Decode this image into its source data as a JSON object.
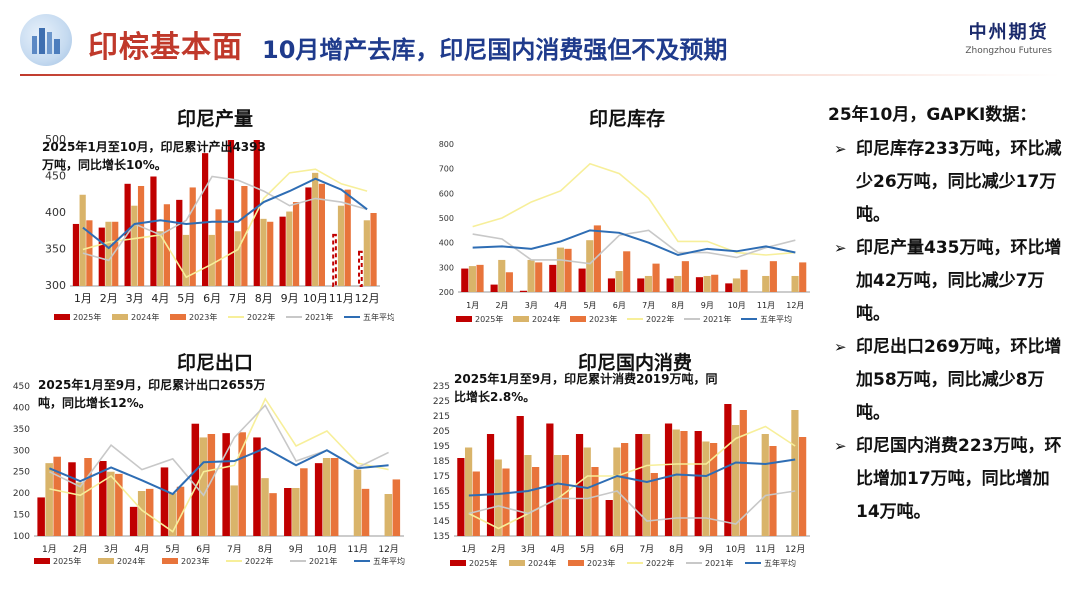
{
  "header": {
    "title_main": "印棕基本面",
    "title_sub": "10月增产去库，印尼国内消费强但不及预期",
    "brand_cn": "中州期货",
    "brand_en": "Zhongzhou Futures"
  },
  "legend_labels": [
    "2025年",
    "2024年",
    "2023年",
    "2022年",
    "2021年",
    "五年平均"
  ],
  "colors": {
    "y2025": "#c00000",
    "y2024": "#d9b46a",
    "y2023": "#e8743b",
    "y2022": "#f7ef9a",
    "y2021": "#c8c8c8",
    "avg": "#2e6db4"
  },
  "right_panel": {
    "heading": "25年10月，GAPKI数据：",
    "items": [
      "印尼库存233万吨，环比减少26万吨，同比减少17万吨。",
      "印尼产量435万吨，环比增加42万吨，同比减少7万吨。",
      "印尼出口269万吨，环比增加58万吨，同比减少8万吨。",
      "印尼国内消费223万吨，环比增加17万吨，同比增加14万吨。"
    ]
  },
  "chart_data": [
    {
      "id": "production",
      "type": "bar",
      "title": "印尼产量",
      "annotation": "2025年1月至10月，印尼累计产出4393万吨，同比增长10%。",
      "categories": [
        "1月",
        "2月",
        "3月",
        "4月",
        "5月",
        "6月",
        "7月",
        "8月",
        "9月",
        "10月",
        "11月",
        "12月"
      ],
      "ylim": [
        300,
        500
      ],
      "yticks": [
        300,
        350,
        400,
        450,
        500
      ],
      "bars": [
        {
          "name": "2025年",
          "values": [
            385,
            380,
            440,
            450,
            418,
            482,
            505,
            502,
            395,
            435,
            370,
            347
          ],
          "dashed_from": 10
        },
        {
          "name": "2024年",
          "values": [
            425,
            388,
            410,
            375,
            370,
            370,
            375,
            392,
            402,
            455,
            410,
            390
          ]
        },
        {
          "name": "2023年",
          "values": [
            390,
            388,
            437,
            412,
            435,
            405,
            437,
            388,
            415,
            440,
            432,
            400
          ]
        }
      ],
      "lines": [
        {
          "name": "2022年",
          "values": [
            350,
            360,
            365,
            370,
            312,
            330,
            350,
            420,
            455,
            460,
            440,
            430
          ]
        },
        {
          "name": "2021年",
          "values": [
            345,
            335,
            385,
            370,
            390,
            450,
            445,
            430,
            410,
            420,
            415,
            405
          ]
        },
        {
          "name": "五年平均",
          "values": [
            380,
            352,
            385,
            390,
            385,
            388,
            388,
            415,
            430,
            447,
            432,
            405
          ]
        }
      ]
    },
    {
      "id": "stocks",
      "type": "bar",
      "title": "印尼库存",
      "annotation": "",
      "categories": [
        "1月",
        "2月",
        "3月",
        "4月",
        "5月",
        "6月",
        "7月",
        "8月",
        "9月",
        "10月",
        "11月",
        "12月"
      ],
      "ylim": [
        200,
        800
      ],
      "yticks": [
        200,
        300,
        400,
        500,
        600,
        700,
        800
      ],
      "bars": [
        {
          "name": "2025年",
          "values": [
            295,
            230,
            205,
            310,
            295,
            255,
            255,
            255,
            260,
            235,
            null,
            null
          ]
        },
        {
          "name": "2024年",
          "values": [
            305,
            330,
            330,
            380,
            410,
            285,
            265,
            265,
            265,
            255,
            265,
            265
          ]
        },
        {
          "name": "2023年",
          "values": [
            310,
            280,
            320,
            375,
            470,
            365,
            315,
            325,
            270,
            290,
            325,
            320
          ]
        }
      ],
      "lines": [
        {
          "name": "2022年",
          "values": [
            465,
            500,
            565,
            610,
            720,
            680,
            580,
            405,
            405,
            360,
            350,
            360
          ]
        },
        {
          "name": "2021年",
          "values": [
            435,
            415,
            330,
            330,
            315,
            430,
            450,
            360,
            360,
            340,
            380,
            410
          ]
        },
        {
          "name": "五年平均",
          "values": [
            380,
            385,
            375,
            405,
            450,
            440,
            400,
            350,
            375,
            365,
            385,
            360
          ]
        }
      ]
    },
    {
      "id": "exports",
      "type": "bar",
      "title": "印尼出口",
      "annotation": "2025年1月至9月，印尼累计出口2655万吨，同比增长12%。",
      "categories": [
        "1月",
        "2月",
        "3月",
        "4月",
        "5月",
        "6月",
        "7月",
        "8月",
        "9月",
        "10月",
        "11月",
        "12月"
      ],
      "ylim": [
        100,
        450
      ],
      "yticks": [
        100,
        150,
        200,
        250,
        300,
        350,
        400,
        450
      ],
      "bars": [
        {
          "name": "2025年",
          "values": [
            190,
            272,
            275,
            168,
            260,
            362,
            340,
            330,
            212,
            270,
            null,
            null
          ]
        },
        {
          "name": "2024年",
          "values": [
            270,
            225,
            250,
            205,
            200,
            330,
            218,
            235,
            212,
            282,
            255,
            198
          ]
        },
        {
          "name": "2023年",
          "values": [
            285,
            282,
            245,
            210,
            215,
            338,
            342,
            200,
            258,
            282,
            210,
            232
          ]
        }
      ],
      "lines": [
        {
          "name": "2022年",
          "values": [
            210,
            195,
            240,
            160,
            110,
            250,
            265,
            420,
            310,
            345,
            270,
            255
          ]
        },
        {
          "name": "2021年",
          "values": [
            250,
            215,
            312,
            255,
            280,
            195,
            330,
            405,
            275,
            300,
            260,
            295
          ]
        },
        {
          "name": "五年平均",
          "values": [
            258,
            228,
            260,
            230,
            198,
            272,
            275,
            305,
            265,
            300,
            258,
            265
          ]
        }
      ]
    },
    {
      "id": "consumption",
      "type": "bar",
      "title": "印尼国内消费",
      "annotation": "2025年1月至9月，印尼累计消费2019万吨，同比增长2.8%。",
      "categories": [
        "1月",
        "2月",
        "3月",
        "4月",
        "5月",
        "6月",
        "7月",
        "8月",
        "9月",
        "10月",
        "11月",
        "12月"
      ],
      "ylim": [
        135,
        235
      ],
      "yticks": [
        135,
        145,
        155,
        165,
        175,
        185,
        195,
        205,
        215,
        225,
        235
      ],
      "bars": [
        {
          "name": "2025年",
          "values": [
            187,
            203,
            215,
            210,
            203,
            159,
            203,
            210,
            205,
            223,
            null,
            null
          ]
        },
        {
          "name": "2024年",
          "values": [
            194,
            186,
            189,
            189,
            194,
            194,
            203,
            206,
            198,
            209,
            203,
            219
          ]
        },
        {
          "name": "2023年",
          "values": [
            178,
            180,
            181,
            189,
            181,
            197,
            177,
            205,
            197,
            219,
            195,
            201
          ]
        }
      ],
      "lines": [
        {
          "name": "2022年",
          "values": [
            150,
            140,
            150,
            160,
            175,
            175,
            182,
            183,
            183,
            200,
            208,
            195
          ]
        },
        {
          "name": "2021年",
          "values": [
            150,
            155,
            150,
            160,
            160,
            165,
            145,
            147,
            147,
            143,
            162,
            165
          ]
        },
        {
          "name": "五年平均",
          "values": [
            162,
            163,
            165,
            170,
            167,
            175,
            171,
            176,
            175,
            184,
            183,
            186
          ]
        }
      ]
    }
  ]
}
